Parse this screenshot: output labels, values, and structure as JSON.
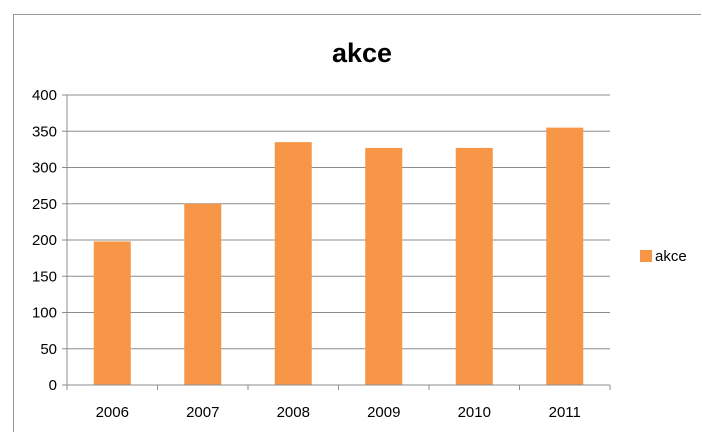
{
  "chart_data": {
    "type": "bar",
    "title": "akce",
    "categories": [
      "2006",
      "2007",
      "2008",
      "2009",
      "2010",
      "2011"
    ],
    "series": [
      {
        "name": "akce",
        "values": [
          198,
          250,
          335,
          327,
          327,
          355
        ],
        "color": "#f79646"
      }
    ],
    "ylim": [
      0,
      400
    ],
    "yticks": [
      "0",
      "50",
      "100",
      "150",
      "200",
      "250",
      "300",
      "350",
      "400"
    ],
    "grid": true,
    "legend_position": "right"
  }
}
